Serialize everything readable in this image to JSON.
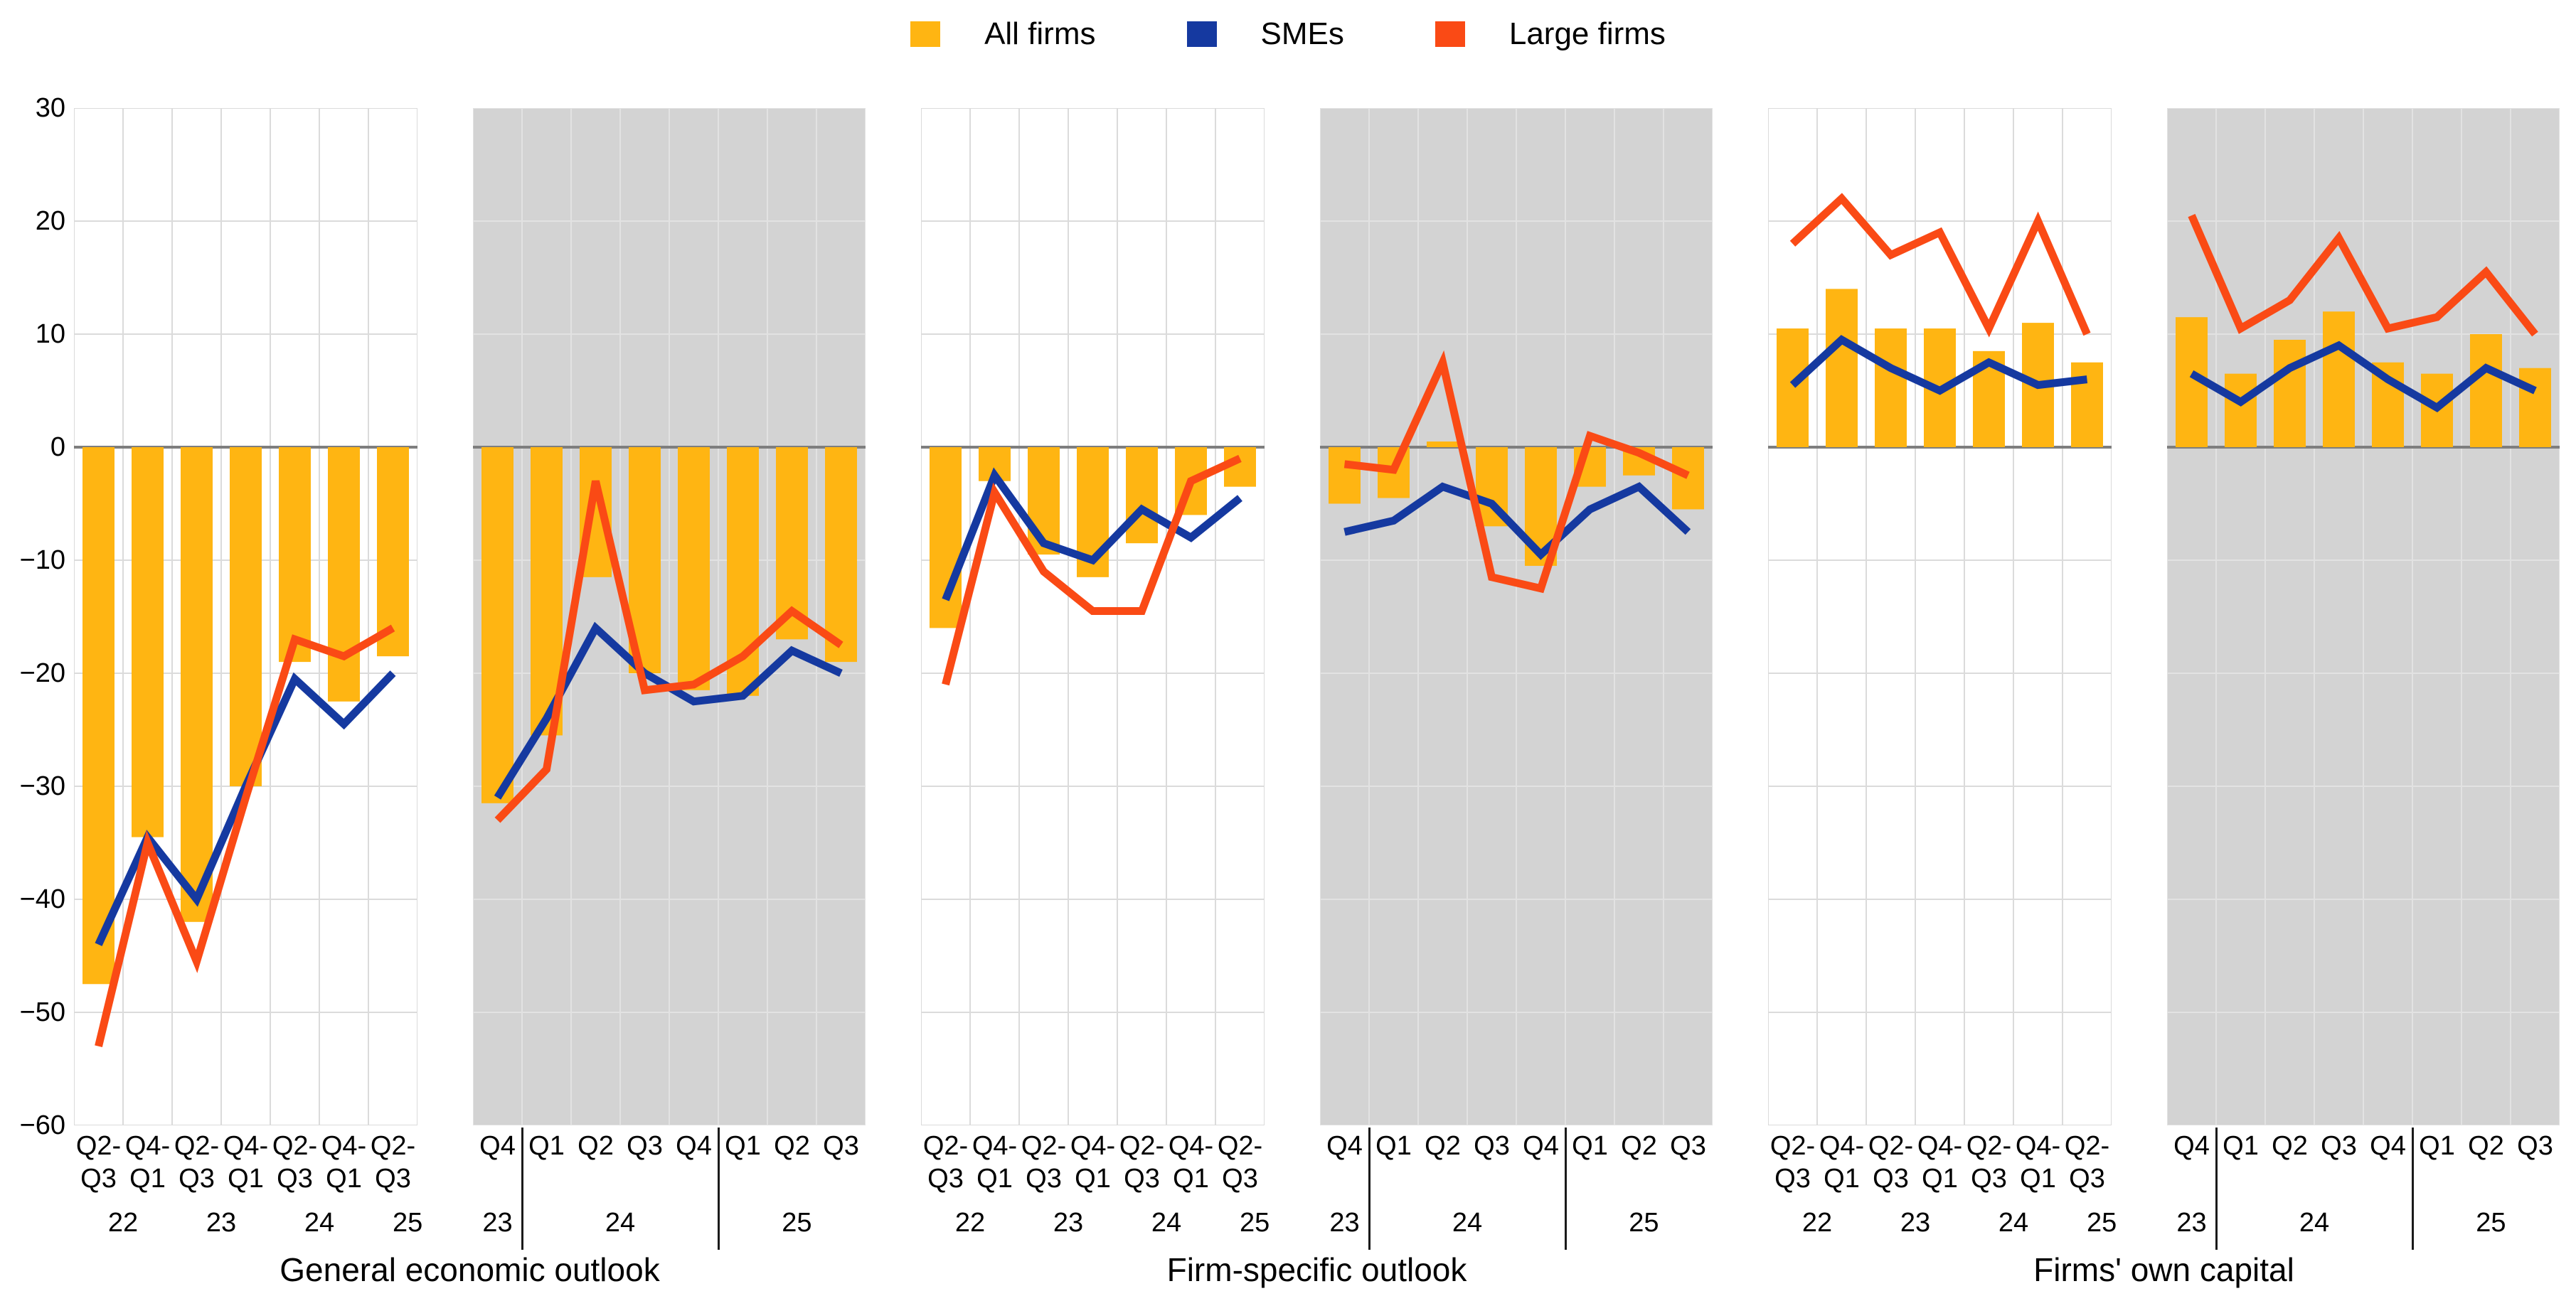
{
  "chart_data": {
    "type": "bar+line",
    "y_axis": {
      "min": -60,
      "max": 30,
      "step": 10,
      "tick_labels": [
        "30",
        "20",
        "10",
        "0",
        "−10",
        "−20",
        "−30",
        "−40",
        "−50",
        "−60"
      ]
    },
    "legend": {
      "position": "top-center",
      "entries": [
        {
          "label": "All firms",
          "type": "bar",
          "color": "#FFB512"
        },
        {
          "label": "SMEs",
          "type": "line",
          "color": "#1539A0"
        },
        {
          "label": "Large firms",
          "type": "line",
          "color": "#FA4A15"
        }
      ]
    },
    "style": {
      "bar_color": "#FFB512",
      "sme_line_color": "#1539A0",
      "large_line_color": "#FA4A15",
      "panel_white": "#FFFFFF",
      "panel_shaded": "#D3D3D3",
      "grid_on_white": "#DBDBDB",
      "grid_on_shaded": "#E2E2E2",
      "zero_line_color": "#7E7E7E",
      "year_separator_color": "#1a1a1a"
    },
    "groups": [
      {
        "title": "General economic outlook",
        "panels": [
          {
            "background": "white",
            "label_style": "biannual",
            "categories": [
              [
                "Q2-",
                "Q3"
              ],
              [
                "Q4-",
                "Q1"
              ],
              [
                "Q2-",
                "Q3"
              ],
              [
                "Q4-",
                "Q1"
              ],
              [
                "Q2-",
                "Q3"
              ],
              [
                "Q4-",
                "Q1"
              ],
              [
                "Q2-",
                "Q3"
              ]
            ],
            "years": [
              {
                "label": "22",
                "slot": 0.5
              },
              {
                "label": "23",
                "slot": 2.5
              },
              {
                "label": "24",
                "slot": 4.5
              },
              {
                "label": "25",
                "slot": 6.3
              }
            ],
            "separators": [],
            "series": {
              "all_firms_bars": [
                -47.5,
                -34.5,
                -42,
                -30,
                -19,
                -22.5,
                -18.5
              ],
              "smes_line": [
                -44,
                -34.5,
                -40,
                -30,
                -20.5,
                -24.5,
                -20
              ],
              "large_firms_line": [
                -53,
                -35,
                -45.5,
                -31,
                -17,
                -18.5,
                -16
              ]
            }
          },
          {
            "background": "shaded",
            "label_style": "quarterly",
            "categories": [
              [
                "Q4"
              ],
              [
                "Q1"
              ],
              [
                "Q2"
              ],
              [
                "Q3"
              ],
              [
                "Q4"
              ],
              [
                "Q1"
              ],
              [
                "Q2"
              ],
              [
                "Q3"
              ]
            ],
            "years": [
              {
                "label": "23",
                "slot": 0
              },
              {
                "label": "24",
                "slot": 2.5
              },
              {
                "label": "25",
                "slot": 6.1
              }
            ],
            "separators": [
              1,
              5
            ],
            "series": {
              "all_firms_bars": [
                -31.5,
                -25.5,
                -11.5,
                -20,
                -21.5,
                -22,
                -17,
                -19
              ],
              "smes_line": [
                -31,
                -24,
                -16,
                -20,
                -22.5,
                -22,
                -18,
                -20
              ],
              "large_firms_line": [
                -33,
                -28.5,
                -3,
                -21.5,
                -21,
                -18.5,
                -14.5,
                -17.5
              ]
            }
          }
        ]
      },
      {
        "title": "Firm-specific outlook",
        "panels": [
          {
            "background": "white",
            "label_style": "biannual",
            "categories": [
              [
                "Q2-",
                "Q3"
              ],
              [
                "Q4-",
                "Q1"
              ],
              [
                "Q2-",
                "Q3"
              ],
              [
                "Q4-",
                "Q1"
              ],
              [
                "Q2-",
                "Q3"
              ],
              [
                "Q4-",
                "Q1"
              ],
              [
                "Q2-",
                "Q3"
              ]
            ],
            "years": [
              {
                "label": "22",
                "slot": 0.5
              },
              {
                "label": "23",
                "slot": 2.5
              },
              {
                "label": "24",
                "slot": 4.5
              },
              {
                "label": "25",
                "slot": 6.3
              }
            ],
            "separators": [],
            "series": {
              "all_firms_bars": [
                -16,
                -3,
                -9.5,
                -11.5,
                -8.5,
                -6,
                -3.5
              ],
              "smes_line": [
                -13.5,
                -2.5,
                -8.5,
                -10,
                -5.5,
                -8,
                -4.5
              ],
              "large_firms_line": [
                -21,
                -4,
                -11,
                -14.5,
                -14.5,
                -3,
                -1
              ]
            }
          },
          {
            "background": "shaded",
            "label_style": "quarterly",
            "categories": [
              [
                "Q4"
              ],
              [
                "Q1"
              ],
              [
                "Q2"
              ],
              [
                "Q3"
              ],
              [
                "Q4"
              ],
              [
                "Q1"
              ],
              [
                "Q2"
              ],
              [
                "Q3"
              ]
            ],
            "years": [
              {
                "label": "23",
                "slot": 0
              },
              {
                "label": "24",
                "slot": 2.5
              },
              {
                "label": "25",
                "slot": 6.1
              }
            ],
            "separators": [
              1,
              5
            ],
            "series": {
              "all_firms_bars": [
                -5,
                -4.5,
                0.5,
                -7,
                -10.5,
                -3.5,
                -2.5,
                -5.5
              ],
              "smes_line": [
                -7.5,
                -6.5,
                -3.5,
                -5,
                -9.5,
                -5.5,
                -3.5,
                -7.5
              ],
              "large_firms_line": [
                -1.5,
                -2,
                7.5,
                -11.5,
                -12.5,
                1,
                -0.5,
                -2.5
              ]
            }
          }
        ]
      },
      {
        "title": "Firms' own capital",
        "panels": [
          {
            "background": "white",
            "label_style": "biannual",
            "categories": [
              [
                "Q2-",
                "Q3"
              ],
              [
                "Q4-",
                "Q1"
              ],
              [
                "Q2-",
                "Q3"
              ],
              [
                "Q4-",
                "Q1"
              ],
              [
                "Q2-",
                "Q3"
              ],
              [
                "Q4-",
                "Q1"
              ],
              [
                "Q2-",
                "Q3"
              ]
            ],
            "years": [
              {
                "label": "22",
                "slot": 0.5
              },
              {
                "label": "23",
                "slot": 2.5
              },
              {
                "label": "24",
                "slot": 4.5
              },
              {
                "label": "25",
                "slot": 6.3
              }
            ],
            "separators": [],
            "series": {
              "all_firms_bars": [
                10.5,
                14,
                10.5,
                10.5,
                8.5,
                11,
                7.5
              ],
              "smes_line": [
                5.5,
                9.5,
                7,
                5,
                7.5,
                5.5,
                6
              ],
              "large_firms_line": [
                18,
                22,
                17,
                19,
                10.5,
                20,
                10
              ]
            }
          },
          {
            "background": "shaded",
            "label_style": "quarterly",
            "categories": [
              [
                "Q4"
              ],
              [
                "Q1"
              ],
              [
                "Q2"
              ],
              [
                "Q3"
              ],
              [
                "Q4"
              ],
              [
                "Q1"
              ],
              [
                "Q2"
              ],
              [
                "Q3"
              ]
            ],
            "years": [
              {
                "label": "23",
                "slot": 0
              },
              {
                "label": "24",
                "slot": 2.5
              },
              {
                "label": "25",
                "slot": 6.1
              }
            ],
            "separators": [
              1,
              5
            ],
            "series": {
              "all_firms_bars": [
                11.5,
                6.5,
                9.5,
                12,
                7.5,
                6.5,
                10,
                7
              ],
              "smes_line": [
                6.5,
                4,
                7,
                9,
                6,
                3.5,
                7,
                5
              ],
              "large_firms_line": [
                20.5,
                10.5,
                13,
                18.5,
                10.5,
                11.5,
                15.5,
                10
              ]
            }
          }
        ]
      }
    ]
  }
}
